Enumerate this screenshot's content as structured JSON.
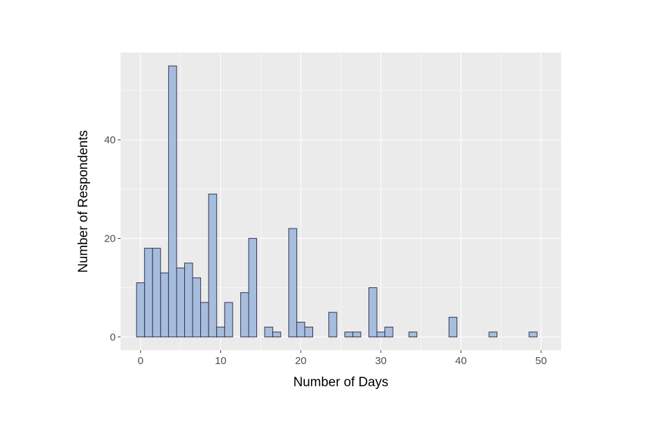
{
  "chart_data": {
    "type": "bar",
    "xlabel": "Number of Days",
    "ylabel": "Number of Respondents",
    "xlim": [
      -2.5,
      52.5
    ],
    "ylim": [
      -2.7,
      57.7
    ],
    "bin_width": 1,
    "x_ticks": [
      0,
      10,
      20,
      30,
      40,
      50
    ],
    "y_ticks": [
      0,
      20,
      40
    ],
    "grid": true,
    "colors": {
      "panel": "#ebebeb",
      "grid": "#ffffff",
      "bar_fill": "#a6bddd",
      "bar_stroke": "#33334d"
    },
    "bins": [
      {
        "x": 0,
        "count": 11
      },
      {
        "x": 1,
        "count": 18
      },
      {
        "x": 2,
        "count": 18
      },
      {
        "x": 3,
        "count": 13
      },
      {
        "x": 4,
        "count": 55
      },
      {
        "x": 5,
        "count": 14
      },
      {
        "x": 6,
        "count": 15
      },
      {
        "x": 7,
        "count": 12
      },
      {
        "x": 8,
        "count": 7
      },
      {
        "x": 9,
        "count": 29
      },
      {
        "x": 10,
        "count": 2
      },
      {
        "x": 11,
        "count": 7
      },
      {
        "x": 12,
        "count": 0
      },
      {
        "x": 13,
        "count": 9
      },
      {
        "x": 14,
        "count": 20
      },
      {
        "x": 15,
        "count": 0
      },
      {
        "x": 16,
        "count": 2
      },
      {
        "x": 17,
        "count": 1
      },
      {
        "x": 18,
        "count": 0
      },
      {
        "x": 19,
        "count": 22
      },
      {
        "x": 20,
        "count": 3
      },
      {
        "x": 21,
        "count": 2
      },
      {
        "x": 22,
        "count": 0
      },
      {
        "x": 23,
        "count": 0
      },
      {
        "x": 24,
        "count": 5
      },
      {
        "x": 25,
        "count": 0
      },
      {
        "x": 26,
        "count": 1
      },
      {
        "x": 27,
        "count": 1
      },
      {
        "x": 28,
        "count": 0
      },
      {
        "x": 29,
        "count": 10
      },
      {
        "x": 30,
        "count": 1
      },
      {
        "x": 31,
        "count": 2
      },
      {
        "x": 32,
        "count": 0
      },
      {
        "x": 33,
        "count": 0
      },
      {
        "x": 34,
        "count": 1
      },
      {
        "x": 35,
        "count": 0
      },
      {
        "x": 36,
        "count": 0
      },
      {
        "x": 37,
        "count": 0
      },
      {
        "x": 38,
        "count": 0
      },
      {
        "x": 39,
        "count": 4
      },
      {
        "x": 40,
        "count": 0
      },
      {
        "x": 41,
        "count": 0
      },
      {
        "x": 42,
        "count": 0
      },
      {
        "x": 43,
        "count": 0
      },
      {
        "x": 44,
        "count": 1
      },
      {
        "x": 45,
        "count": 0
      },
      {
        "x": 46,
        "count": 0
      },
      {
        "x": 47,
        "count": 0
      },
      {
        "x": 48,
        "count": 0
      },
      {
        "x": 49,
        "count": 1
      },
      {
        "x": 50,
        "count": 0
      }
    ]
  }
}
